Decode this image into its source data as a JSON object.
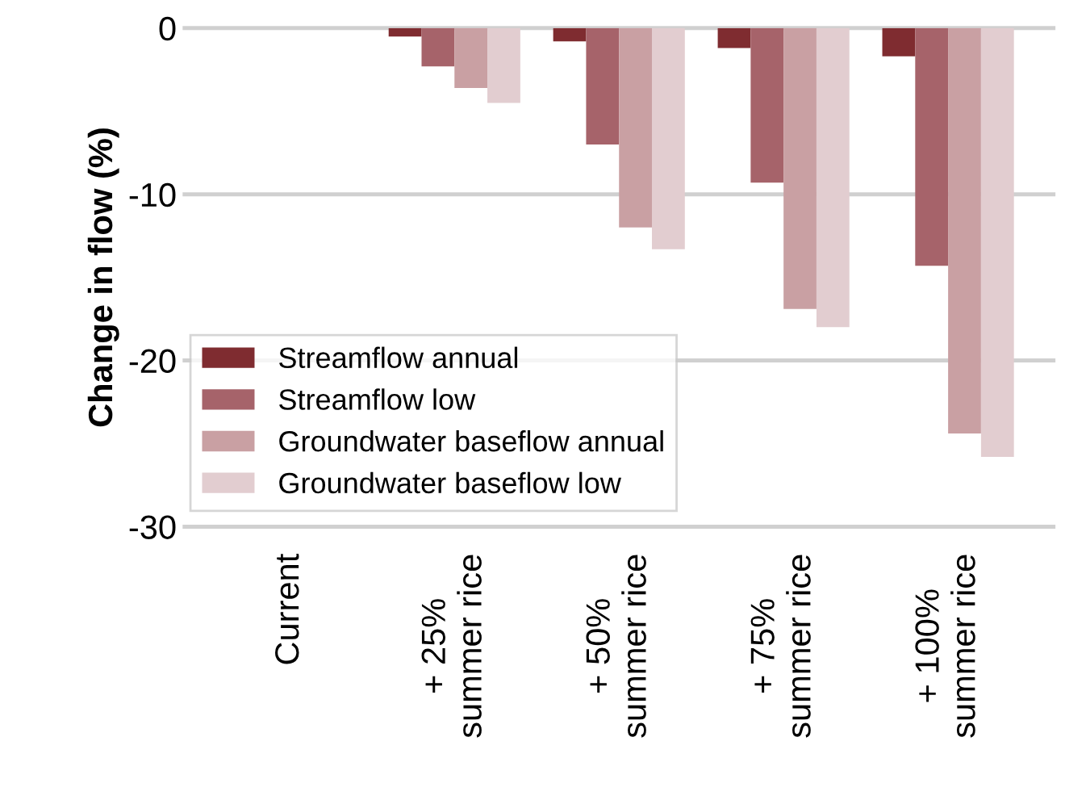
{
  "chart_data": {
    "type": "bar",
    "ylabel": "Change in flow (%)",
    "categories": [
      "Current",
      "+ 25%\nsummer rice",
      "+ 50%\nsummer rice",
      "+ 75%\nsummer rice",
      "+ 100%\nsummer rice"
    ],
    "series": [
      {
        "name": "Streamflow annual",
        "color": "#7f2c30",
        "values": [
          0,
          -0.5,
          -0.8,
          -1.2,
          -1.7
        ]
      },
      {
        "name": "Streamflow low",
        "color": "#a6636a",
        "values": [
          0,
          -2.3,
          -7.0,
          -9.3,
          -14.3
        ]
      },
      {
        "name": "Groundwater baseflow annual",
        "color": "#c9a0a3",
        "values": [
          0,
          -3.6,
          -12.0,
          -16.9,
          -24.4
        ]
      },
      {
        "name": "Groundwater baseflow low",
        "color": "#e2cdd0",
        "values": [
          0,
          -4.5,
          -13.3,
          -18.0,
          -25.8
        ]
      }
    ],
    "ylim": [
      -30,
      0
    ],
    "yticks": [
      -30,
      -20,
      -10,
      0
    ],
    "grid": "y",
    "legend": "bottom left"
  }
}
